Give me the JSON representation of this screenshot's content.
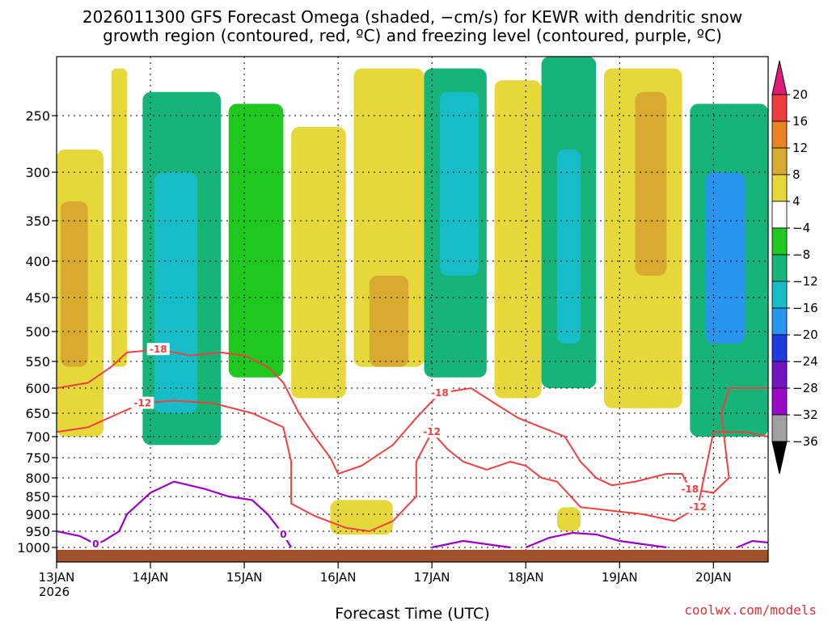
{
  "chart_data": {
    "type": "heatmap",
    "title_line1": "2026011300 GFS Forecast Omega (shaded, −cm/s) for KEWR with dendritic snow",
    "title_line2": "growth region (contoured, red, ºC) and freezing level (contoured, purple, ºC)",
    "xlabel": "Forecast Time (UTC)",
    "ylabel": "",
    "credit": "coolwx.com/models",
    "x_ticks": [
      "13JAN",
      "14JAN",
      "15JAN",
      "16JAN",
      "17JAN",
      "18JAN",
      "19JAN",
      "20JAN"
    ],
    "x_year": "2026",
    "xlim_hours": [
      0,
      182
    ],
    "y_ticks": [
      "250",
      "300",
      "350",
      "400",
      "450",
      "500",
      "550",
      "600",
      "650",
      "700",
      "750",
      "800",
      "850",
      "900",
      "950",
      "1000"
    ],
    "colorbar_labels": [
      "20",
      "16",
      "12",
      "8",
      "4",
      "−4",
      "−8",
      "−12",
      "−16",
      "−20",
      "−24",
      "−28",
      "−32",
      "−36"
    ],
    "colorbar_colors": [
      "#f03c3c",
      "#e88222",
      "#d8aa30",
      "#e6d83a",
      "#ffffff",
      "#1ec81e",
      "#16b478",
      "#16bcc8",
      "#2896f0",
      "#1c3ce0",
      "#7214c0",
      "#9a08c8",
      "#a0a0a0"
    ],
    "omega_regions": [
      {
        "t0": 0,
        "t1": 12,
        "p0": 280,
        "p1": 700,
        "value": 6
      },
      {
        "t0": 1,
        "t1": 8,
        "p0": 330,
        "p1": 560,
        "value": 10
      },
      {
        "t0": 14,
        "t1": 18,
        "p0": 210,
        "p1": 560,
        "value": 5
      },
      {
        "t0": 22,
        "t1": 42,
        "p0": 230,
        "p1": 720,
        "value": -8
      },
      {
        "t0": 25,
        "t1": 36,
        "p0": 300,
        "p1": 650,
        "value": -12
      },
      {
        "t0": 44,
        "t1": 58,
        "p0": 240,
        "p1": 580,
        "value": -6
      },
      {
        "t0": 60,
        "t1": 74,
        "p0": 260,
        "p1": 620,
        "value": 5
      },
      {
        "t0": 76,
        "t1": 94,
        "p0": 210,
        "p1": 560,
        "value": 6
      },
      {
        "t0": 80,
        "t1": 90,
        "p0": 420,
        "p1": 560,
        "value": 9
      },
      {
        "t0": 94,
        "t1": 110,
        "p0": 210,
        "p1": 580,
        "value": -10
      },
      {
        "t0": 98,
        "t1": 108,
        "p0": 230,
        "p1": 420,
        "value": -14
      },
      {
        "t0": 112,
        "t1": 124,
        "p0": 220,
        "p1": 620,
        "value": 5
      },
      {
        "t0": 124,
        "t1": 138,
        "p0": 200,
        "p1": 600,
        "value": -9
      },
      {
        "t0": 128,
        "t1": 134,
        "p0": 280,
        "p1": 520,
        "value": -15
      },
      {
        "t0": 140,
        "t1": 160,
        "p0": 210,
        "p1": 640,
        "value": 6
      },
      {
        "t0": 148,
        "t1": 156,
        "p0": 230,
        "p1": 420,
        "value": 11
      },
      {
        "t0": 162,
        "t1": 182,
        "p0": 240,
        "p1": 700,
        "value": -11
      },
      {
        "t0": 166,
        "t1": 176,
        "p0": 300,
        "p1": 520,
        "value": -16
      },
      {
        "t0": 70,
        "t1": 86,
        "p0": 860,
        "p1": 960,
        "value": 5
      },
      {
        "t0": 128,
        "t1": 134,
        "p0": 880,
        "p1": 950,
        "value": 5
      }
    ],
    "dgz_contours": [
      {
        "label": "-18",
        "points": [
          [
            0,
            600
          ],
          [
            8,
            590
          ],
          [
            14,
            560
          ],
          [
            18,
            535
          ],
          [
            26,
            530
          ],
          [
            34,
            540
          ],
          [
            42,
            535
          ],
          [
            48,
            540
          ],
          [
            54,
            560
          ],
          [
            58,
            590
          ],
          [
            62,
            650
          ],
          [
            66,
            700
          ],
          [
            70,
            750
          ],
          [
            72,
            790
          ],
          [
            78,
            770
          ],
          [
            86,
            720
          ],
          [
            92,
            660
          ],
          [
            98,
            610
          ],
          [
            106,
            600
          ],
          [
            112,
            630
          ],
          [
            118,
            660
          ],
          [
            124,
            680
          ],
          [
            130,
            700
          ],
          [
            134,
            760
          ],
          [
            138,
            800
          ],
          [
            142,
            820
          ],
          [
            148,
            810
          ],
          [
            156,
            790
          ],
          [
            160,
            790
          ],
          [
            162,
            830
          ],
          [
            168,
            840
          ],
          [
            172,
            800
          ],
          [
            170,
            650
          ],
          [
            172,
            600
          ],
          [
            182,
            600
          ]
        ]
      },
      {
        "label": "-12",
        "points": [
          [
            0,
            690
          ],
          [
            8,
            680
          ],
          [
            16,
            650
          ],
          [
            22,
            630
          ],
          [
            30,
            625
          ],
          [
            40,
            630
          ],
          [
            50,
            650
          ],
          [
            58,
            680
          ],
          [
            60,
            760
          ],
          [
            60,
            870
          ],
          [
            66,
            905
          ],
          [
            74,
            940
          ],
          [
            80,
            950
          ],
          [
            86,
            920
          ],
          [
            92,
            850
          ],
          [
            92,
            760
          ],
          [
            96,
            690
          ],
          [
            100,
            730
          ],
          [
            104,
            760
          ],
          [
            110,
            780
          ],
          [
            116,
            760
          ],
          [
            120,
            770
          ],
          [
            124,
            800
          ],
          [
            128,
            810
          ],
          [
            134,
            880
          ],
          [
            142,
            890
          ],
          [
            150,
            900
          ],
          [
            158,
            920
          ],
          [
            164,
            880
          ],
          [
            166,
            780
          ],
          [
            168,
            690
          ],
          [
            176,
            690
          ],
          [
            182,
            700
          ]
        ]
      }
    ],
    "freezing_contours": [
      {
        "label": "0",
        "points": [
          [
            0,
            950
          ],
          [
            6,
            965
          ],
          [
            10,
            990
          ],
          [
            12,
            980
          ],
          [
            16,
            950
          ],
          [
            18,
            900
          ],
          [
            24,
            840
          ],
          [
            30,
            810
          ],
          [
            34,
            820
          ],
          [
            38,
            830
          ],
          [
            44,
            850
          ],
          [
            50,
            860
          ],
          [
            54,
            900
          ],
          [
            58,
            960
          ],
          [
            60,
            1000
          ]
        ]
      },
      {
        "label": "0",
        "points": [
          [
            96,
            1000
          ],
          [
            104,
            980
          ],
          [
            110,
            990
          ],
          [
            116,
            1000
          ]
        ]
      },
      {
        "label": "0",
        "points": [
          [
            120,
            1000
          ],
          [
            126,
            970
          ],
          [
            132,
            955
          ],
          [
            138,
            960
          ],
          [
            144,
            980
          ],
          [
            150,
            990
          ],
          [
            156,
            1000
          ]
        ]
      },
      {
        "label": "0",
        "points": [
          [
            174,
            1000
          ],
          [
            178,
            980
          ],
          [
            182,
            985
          ]
        ]
      }
    ]
  }
}
